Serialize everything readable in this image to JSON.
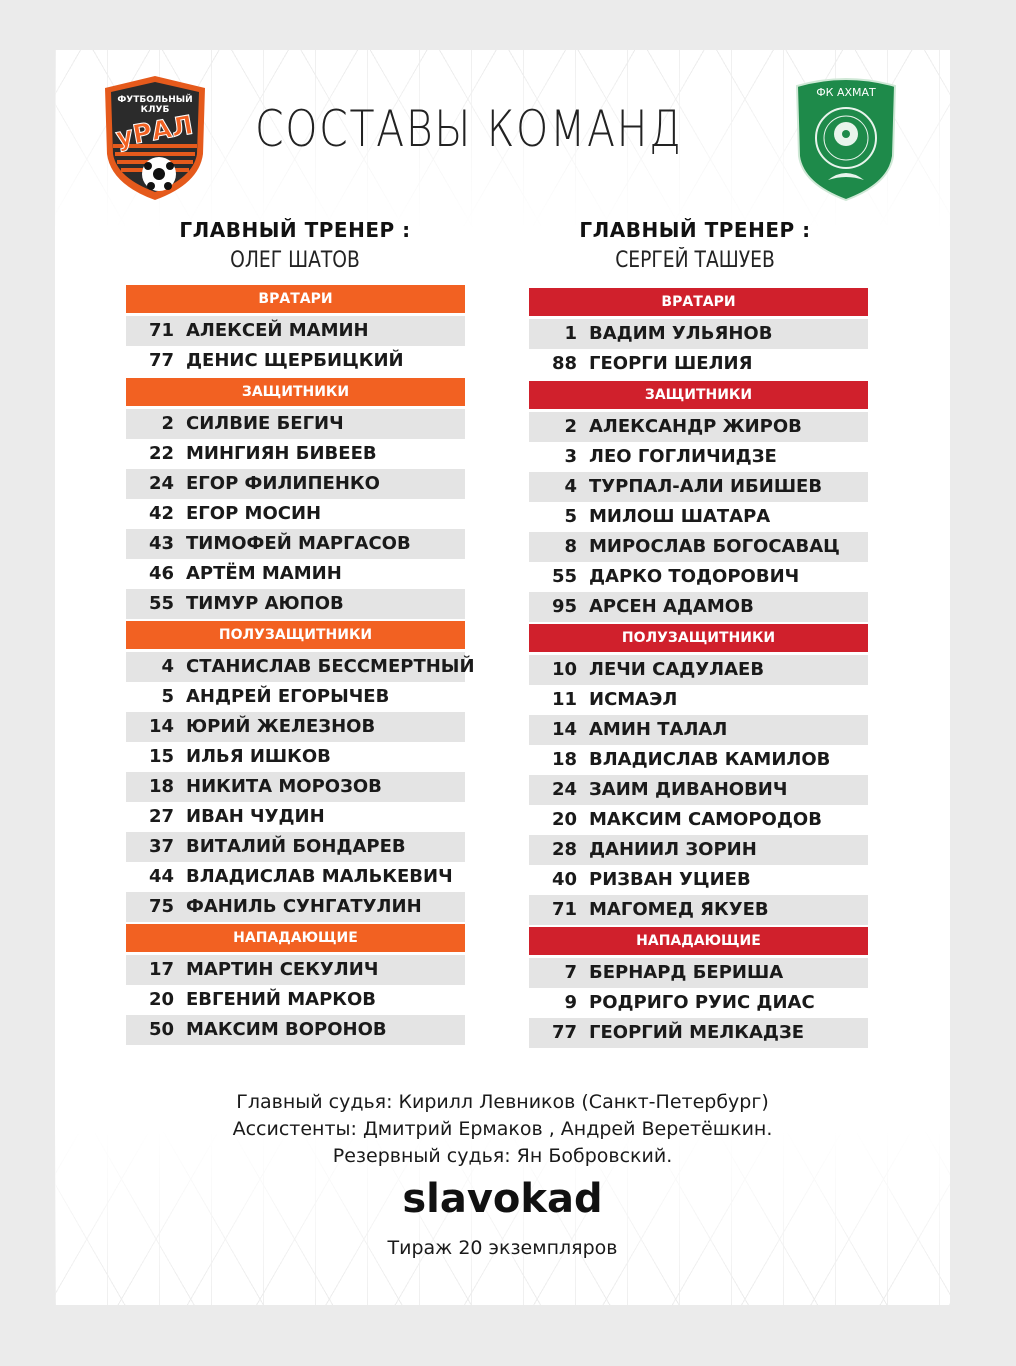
{
  "title": "СОСТАВЫ КОМАНД",
  "home": {
    "logo_text": [
      "ФУТБОЛЬНЫЙ",
      "КЛУБ",
      "УРАЛ"
    ],
    "accent": "#f26122",
    "coach_label": "ГЛАВНЫЙ ТРЕНЕР :",
    "coach": "ОЛЕГ ШАТОВ",
    "sections": [
      {
        "name": "ВРАТАРИ",
        "players": [
          [
            "71",
            "АЛЕКСЕЙ МАМИН"
          ],
          [
            "77",
            "ДЕНИС ЩЕРБИЦКИЙ"
          ]
        ]
      },
      {
        "name": "ЗАЩИТНИКИ",
        "players": [
          [
            "2",
            "СИЛВИЕ БЕГИЧ"
          ],
          [
            "22",
            "МИНГИЯН БИВЕЕВ"
          ],
          [
            "24",
            "ЕГОР ФИЛИПЕНКО"
          ],
          [
            "42",
            "ЕГОР МОСИН"
          ],
          [
            "43",
            "ТИМОФЕЙ МАРГАСОВ"
          ],
          [
            "46",
            "АРТЁМ МАМИН"
          ],
          [
            "55",
            "ТИМУР АЮПОВ"
          ]
        ]
      },
      {
        "name": "ПОЛУЗАЩИТНИКИ",
        "players": [
          [
            "4",
            "СТАНИСЛАВ БЕССМЕРТНЫЙ"
          ],
          [
            "5",
            "АНДРЕЙ ЕГОРЫЧЕВ"
          ],
          [
            "14",
            "ЮРИЙ ЖЕЛЕЗНОВ"
          ],
          [
            "15",
            "ИЛЬЯ ИШКОВ"
          ],
          [
            "18",
            "НИКИТА МОРОЗОВ"
          ],
          [
            "27",
            "ИВАН ЧУДИН"
          ],
          [
            "37",
            "ВИТАЛИЙ БОНДАРЕВ"
          ],
          [
            "44",
            "ВЛАДИСЛАВ МАЛЬКЕВИЧ"
          ],
          [
            "75",
            "ФАНИЛЬ СУНГАТУЛИН"
          ]
        ]
      },
      {
        "name": "НАПАДАЮЩИЕ",
        "players": [
          [
            "17",
            "МАРТИН СЕКУЛИЧ"
          ],
          [
            "20",
            "ЕВГЕНИЙ МАРКОВ"
          ],
          [
            "50",
            "МАКСИМ ВОРОНОВ"
          ]
        ]
      }
    ]
  },
  "away": {
    "logo_text": [
      "ФК АХМАТ"
    ],
    "accent": "#d0202c",
    "coach_label": "ГЛАВНЫЙ ТРЕНЕР :",
    "coach": "СЕРГЕЙ ТАШУЕВ",
    "sections": [
      {
        "name": "ВРАТАРИ",
        "players": [
          [
            "1",
            "ВАДИМ УЛЬЯНОВ"
          ],
          [
            "88",
            "ГЕОРГИ ШЕЛИЯ"
          ]
        ]
      },
      {
        "name": "ЗАЩИТНИКИ",
        "players": [
          [
            "2",
            "АЛЕКСАНДР ЖИРОВ"
          ],
          [
            "3",
            "ЛЕО ГОГЛИЧИДЗЕ"
          ],
          [
            "4",
            "ТУРПАЛ-АЛИ ИБИШЕВ"
          ],
          [
            "5",
            "МИЛОШ ШАТАРА"
          ],
          [
            "8",
            "МИРОСЛАВ БОГОСАВАЦ"
          ],
          [
            "55",
            "ДАРКО ТОДОРОВИЧ"
          ],
          [
            "95",
            "АРСЕН АДАМОВ"
          ]
        ]
      },
      {
        "name": "ПОЛУЗАЩИТНИКИ",
        "players": [
          [
            "10",
            "ЛЕЧИ САДУЛАЕВ"
          ],
          [
            "11",
            "ИСМАЭЛ"
          ],
          [
            "14",
            "АМИН ТАЛАЛ"
          ],
          [
            "18",
            "ВЛАДИСЛАВ КАМИЛОВ"
          ],
          [
            "24",
            "ЗАИМ ДИВАНОВИЧ"
          ],
          [
            "20",
            "МАКСИМ САМОРОДОВ"
          ],
          [
            "28",
            "ДАНИИЛ ЗОРИН"
          ],
          [
            "40",
            "РИЗВАН УЦИЕВ"
          ],
          [
            "71",
            "МАГОМЕД ЯКУЕВ"
          ]
        ]
      },
      {
        "name": "НАПАДАЮЩИЕ",
        "players": [
          [
            "7",
            "БЕРНАРД БЕРИША"
          ],
          [
            "9",
            "РОДРИГО РУИС ДИАС"
          ],
          [
            "77",
            "ГЕОРГИЙ МЕЛКАДЗЕ"
          ]
        ]
      }
    ]
  },
  "officials": [
    "Главный судья: Кирилл Левников (Санкт-Петербург)",
    "Ассистенты: Дмитрий Ермаков , Андрей Веретёшкин.",
    "Резервный судья: Ян Бобровский."
  ],
  "print_run": "Тираж 20 экземпляров",
  "watermark": "slavokad"
}
